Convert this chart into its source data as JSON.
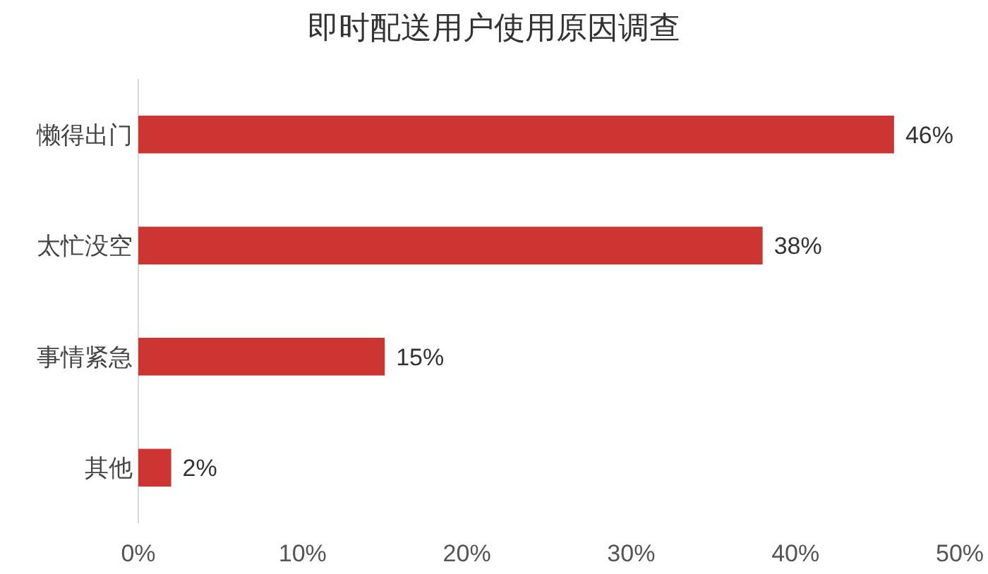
{
  "chart_data": {
    "type": "bar",
    "orientation": "horizontal",
    "title": "即时配送用户使用原因调查",
    "categories": [
      "懒得出门",
      "太忙没空",
      "事情紧急",
      "其他"
    ],
    "values": [
      46,
      38,
      15,
      2
    ],
    "color": "#cc3531",
    "value_labels": [
      "46%",
      "38%",
      "15%",
      "2%"
    ],
    "xlim": [
      0,
      50
    ],
    "xticks": [
      {
        "value": 0,
        "label": "0%"
      },
      {
        "value": 10,
        "label": "10%"
      },
      {
        "value": 20,
        "label": "20%"
      },
      {
        "value": 30,
        "label": "30%"
      },
      {
        "value": 40,
        "label": "40%"
      },
      {
        "value": 50,
        "label": "50%"
      }
    ],
    "grid": false
  }
}
